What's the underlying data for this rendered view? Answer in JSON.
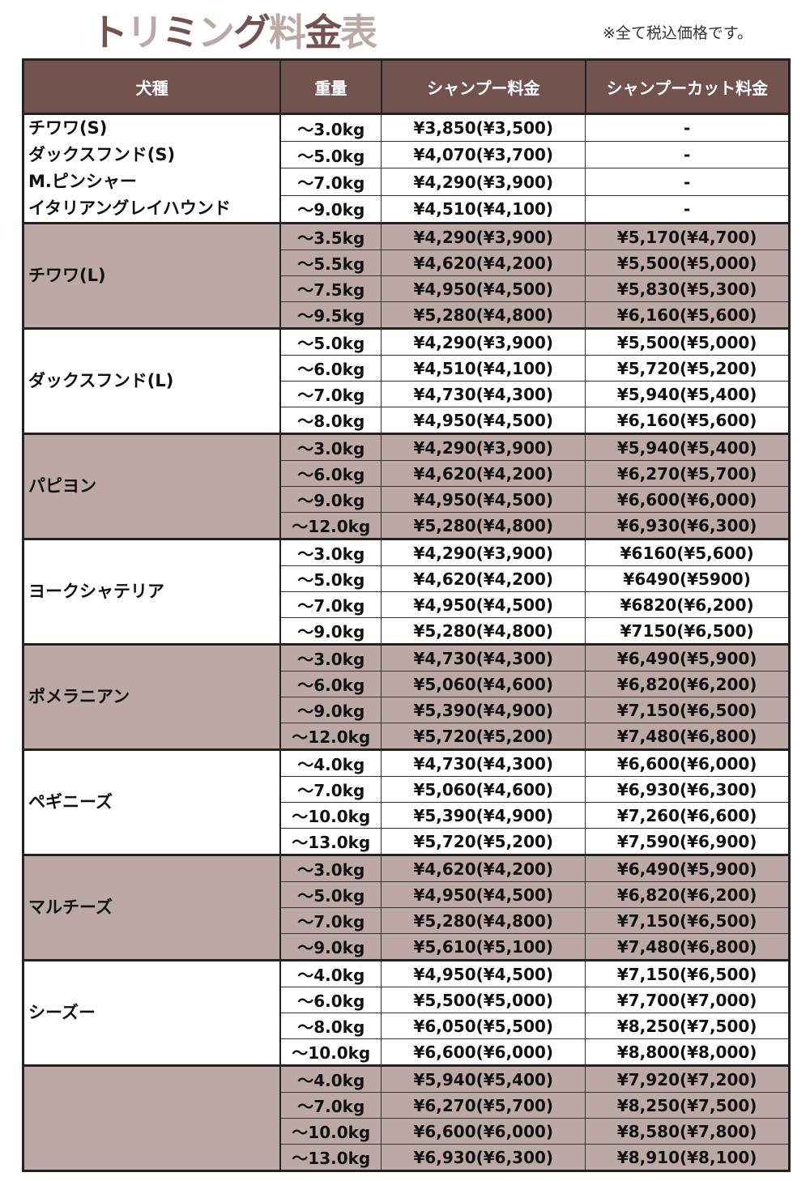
{
  "title_chars": [
    "ト",
    "リ",
    "ミ",
    "ン",
    "グ",
    "料",
    "金",
    "表"
  ],
  "title": "トリミング料金表",
  "note": "※全て税込価格です。",
  "headers": [
    "犬種",
    "重量",
    "シャンプー料金",
    "シャンプーカット料金"
  ],
  "colors": {
    "header_bg": "#735350",
    "shade": "#bca9a5",
    "title_dark": "#735350",
    "title_light": "#bba9a5"
  },
  "groups": [
    {
      "breeds": [
        "チワワ(S)",
        "ダックスフンド(S)",
        "M.ピンシャー",
        "イタリアングレイハウンド"
      ],
      "shaded": false,
      "rows": [
        [
          "～3.0kg",
          "¥3,850(¥3,500)",
          "-"
        ],
        [
          "～5.0kg",
          "¥4,070(¥3,700)",
          "-"
        ],
        [
          "～7.0kg",
          "¥4,290(¥3,900)",
          "-"
        ],
        [
          "～9.0kg",
          "¥4,510(¥4,100)",
          "-"
        ]
      ]
    },
    {
      "breeds": [
        "チワワ(L)"
      ],
      "shaded": true,
      "rows": [
        [
          "～3.5kg",
          "¥4,290(¥3,900)",
          "¥5,170(¥4,700)"
        ],
        [
          "～5.5kg",
          "¥4,620(¥4,200)",
          "¥5,500(¥5,000)"
        ],
        [
          "～7.5kg",
          "¥4,950(¥4,500)",
          "¥5,830(¥5,300)"
        ],
        [
          "～9.5kg",
          "¥5,280(¥4,800)",
          "¥6,160(¥5,600)"
        ]
      ]
    },
    {
      "breeds": [
        "ダックスフンド(L)"
      ],
      "shaded": false,
      "rows": [
        [
          "～5.0kg",
          "¥4,290(¥3,900)",
          "¥5,500(¥5,000)"
        ],
        [
          "～6.0kg",
          "¥4,510(¥4,100)",
          "¥5,720(¥5,200)"
        ],
        [
          "～7.0kg",
          "¥4,730(¥4,300)",
          "¥5,940(¥5,400)"
        ],
        [
          "～8.0kg",
          "¥4,950(¥4,500)",
          "¥6,160(¥5,600)"
        ]
      ]
    },
    {
      "breeds": [
        "パピヨン"
      ],
      "shaded": true,
      "rows": [
        [
          "～3.0kg",
          "¥4,290(¥3,900)",
          "¥5,940(¥5,400)"
        ],
        [
          "～6.0kg",
          "¥4,620(¥4,200)",
          "¥6,270(¥5,700)"
        ],
        [
          "～9.0kg",
          "¥4,950(¥4,500)",
          "¥6,600(¥6,000)"
        ],
        [
          "～12.0kg",
          "¥5,280(¥4,800)",
          "¥6,930(¥6,300)"
        ]
      ]
    },
    {
      "breeds": [
        "ヨークシャテリア"
      ],
      "shaded": false,
      "rows": [
        [
          "～3.0kg",
          "¥4,290(¥3,900)",
          "¥6160(¥5,600)"
        ],
        [
          "～5.0kg",
          "¥4,620(¥4,200)",
          "¥6490(¥5900)"
        ],
        [
          "～7.0kg",
          "¥4,950(¥4,500)",
          "¥6820(¥6,200)"
        ],
        [
          "～9.0kg",
          "¥5,280(¥4,800)",
          "¥7150(¥6,500)"
        ]
      ]
    },
    {
      "breeds": [
        "ポメラニアン"
      ],
      "shaded": true,
      "rows": [
        [
          "～3.0kg",
          "¥4,730(¥4,300)",
          "¥6,490(¥5,900)"
        ],
        [
          "～6.0kg",
          "¥5,060(¥4,600)",
          "¥6,820(¥6,200)"
        ],
        [
          "～9.0kg",
          "¥5,390(¥4,900)",
          "¥7,150(¥6,500)"
        ],
        [
          "～12.0kg",
          "¥5,720(¥5,200)",
          "¥7,480(¥6,800)"
        ]
      ]
    },
    {
      "breeds": [
        "ペギニーズ"
      ],
      "shaded": false,
      "rows": [
        [
          "～4.0kg",
          "¥4,730(¥4,300)",
          "¥6,600(¥6,000)"
        ],
        [
          "～7.0kg",
          "¥5,060(¥4,600)",
          "¥6,930(¥6,300)"
        ],
        [
          "～10.0kg",
          "¥5,390(¥4,900)",
          "¥7,260(¥6,600)"
        ],
        [
          "～13.0kg",
          "¥5,720(¥5,200)",
          "¥7,590(¥6,900)"
        ]
      ]
    },
    {
      "breeds": [
        "マルチーズ"
      ],
      "shaded": true,
      "rows": [
        [
          "～3.0kg",
          "¥4,620(¥4,200)",
          "¥6,490(¥5,900)"
        ],
        [
          "～5.0kg",
          "¥4,950(¥4,500)",
          "¥6,820(¥6,200)"
        ],
        [
          "～7.0kg",
          "¥5,280(¥4,800)",
          "¥7,150(¥6,500)"
        ],
        [
          "～9.0kg",
          "¥5,610(¥5,100)",
          "¥7,480(¥6,800)"
        ]
      ]
    },
    {
      "breeds": [
        "シーズー"
      ],
      "shaded": false,
      "rows": [
        [
          "～4.0kg",
          "¥4,950(¥4,500)",
          "¥7,150(¥6,500)"
        ],
        [
          "～6.0kg",
          "¥5,500(¥5,000)",
          "¥7,700(¥7,000)"
        ],
        [
          "～8.0kg",
          "¥6,050(¥5,500)",
          "¥8,250(¥7,500)"
        ],
        [
          "～10.0kg",
          "¥6,600(¥6,000)",
          "¥8,800(¥8,000)"
        ]
      ]
    },
    {
      "breeds": [],
      "shaded": true,
      "rows": [
        [
          "～4.0kg",
          "¥5,940(¥5,400)",
          "¥7,920(¥7,200)"
        ],
        [
          "～7.0kg",
          "¥6,270(¥5,700)",
          "¥8,250(¥7,500)"
        ],
        [
          "～10.0kg",
          "¥6,600(¥6,000)",
          "¥8,580(¥7,800)"
        ],
        [
          "～13.0kg",
          "¥6,930(¥6,300)",
          "¥8,910(¥8,100)"
        ]
      ]
    }
  ]
}
